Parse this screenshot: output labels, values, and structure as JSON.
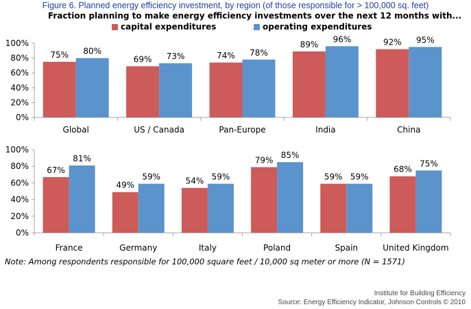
{
  "figure_title": "Figure 6.  Planned energy efficiency investment, by region (of those responsible for > 100,000 sq. feet)",
  "note": "Note: Among respondents responsible for 100,000 square feet / 10,000 sq meter or more (N = 1571)",
  "credit_org": "Institute for Building Efficiency",
  "credit_source": "Source: Energy Efficiency Indicator, Johnson Controls © 2010",
  "colors": {
    "capital": "#cd5b59",
    "operating": "#5b93cc",
    "axis": "#a6a6a6"
  },
  "chart_data": [
    {
      "type": "bar",
      "title": "Fraction planning to make energy efficiency investments over the next 12 months with...",
      "categories": [
        "Global",
        "US / Canada",
        "Pan-Europe",
        "India",
        "China"
      ],
      "series": [
        {
          "name": "capital expenditures",
          "values": [
            75,
            69,
            74,
            89,
            92
          ],
          "labels": [
            "75%",
            "69%",
            "74%",
            "89%",
            "92%"
          ]
        },
        {
          "name": "operating expenditures",
          "values": [
            80,
            73,
            78,
            96,
            95
          ],
          "labels": [
            "80%",
            "73%",
            "78%",
            "96%",
            "95%"
          ]
        }
      ],
      "ylim": [
        0,
        100
      ],
      "yticks": [
        "0%",
        "20%",
        "40%",
        "60%",
        "80%",
        "100%"
      ],
      "xlabel": "",
      "ylabel": "",
      "legend": "top"
    },
    {
      "type": "bar",
      "categories": [
        "France",
        "Germany",
        "Italy",
        "Poland",
        "Spain",
        "United Kingdom"
      ],
      "series": [
        {
          "name": "capital expenditures",
          "values": [
            67,
            49,
            54,
            79,
            59,
            68
          ],
          "labels": [
            "67%",
            "49%",
            "54%",
            "79%",
            "59%",
            "68%"
          ]
        },
        {
          "name": "operating expenditures",
          "values": [
            81,
            59,
            59,
            85,
            59,
            75
          ],
          "labels": [
            "81%",
            "59%",
            "59%",
            "85%",
            "59%",
            "75%"
          ]
        }
      ],
      "ylim": [
        0,
        100
      ],
      "yticks": [
        "0%",
        "20%",
        "40%",
        "60%",
        "80%",
        "100%"
      ],
      "xlabel": "",
      "ylabel": ""
    }
  ]
}
